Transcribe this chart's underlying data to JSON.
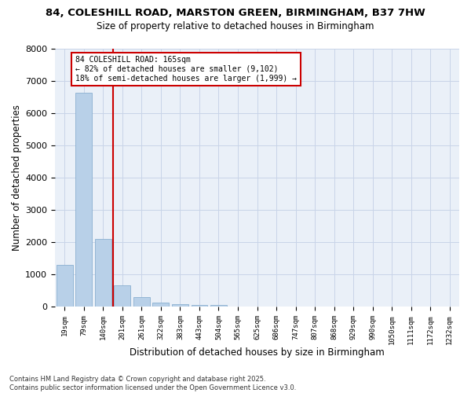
{
  "title_line1": "84, COLESHILL ROAD, MARSTON GREEN, BIRMINGHAM, B37 7HW",
  "title_line2": "Size of property relative to detached houses in Birmingham",
  "xlabel": "Distribution of detached houses by size in Birmingham",
  "ylabel": "Number of detached properties",
  "bins": [
    "19sqm",
    "79sqm",
    "140sqm",
    "201sqm",
    "261sqm",
    "322sqm",
    "383sqm",
    "443sqm",
    "504sqm",
    "565sqm",
    "625sqm",
    "686sqm",
    "747sqm",
    "807sqm",
    "868sqm",
    "929sqm",
    "990sqm",
    "1050sqm",
    "1111sqm",
    "1172sqm",
    "1232sqm"
  ],
  "values": [
    1300,
    6620,
    2100,
    680,
    300,
    130,
    75,
    50,
    50,
    0,
    0,
    0,
    0,
    0,
    0,
    0,
    0,
    0,
    0,
    0,
    0
  ],
  "bar_color": "#b8d0e8",
  "bar_edge_color": "#8ab0d0",
  "annotation_line1": "84 COLESHILL ROAD: 165sqm",
  "annotation_line2": "← 82% of detached houses are smaller (9,102)",
  "annotation_line3": "18% of semi-detached houses are larger (1,999) →",
  "vline_color": "#cc0000",
  "grid_color": "#c8d4e8",
  "background_color": "#eaf0f8",
  "ylim": [
    0,
    8000
  ],
  "yticks": [
    0,
    1000,
    2000,
    3000,
    4000,
    5000,
    6000,
    7000,
    8000
  ],
  "footer_line1": "Contains HM Land Registry data © Crown copyright and database right 2025.",
  "footer_line2": "Contains public sector information licensed under the Open Government Licence v3.0."
}
